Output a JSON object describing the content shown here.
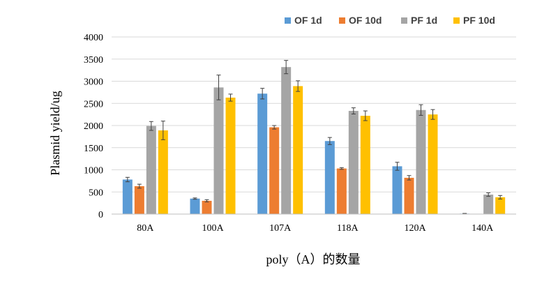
{
  "chart_data": {
    "type": "bar",
    "xlabel": "poly（A）的数量",
    "ylabel": "Plasmid yield/ug",
    "categories": [
      "80A",
      "100A",
      "107A",
      "118A",
      "120A",
      "140A"
    ],
    "ylim": [
      0,
      4000
    ],
    "yticks": [
      0,
      500,
      1000,
      1500,
      2000,
      2500,
      3000,
      3500,
      4000
    ],
    "ytick_labels": [
      "0",
      "500",
      "1000",
      "1500",
      "2000",
      "2500",
      "3000",
      "3500",
      "4000"
    ],
    "grid": true,
    "legend_position": "top-right",
    "series": [
      {
        "name": "OF 1d",
        "color": "#5B9BD5",
        "values": [
          780,
          350,
          2720,
          1650,
          1080,
          10
        ],
        "errors": [
          50,
          15,
          120,
          80,
          90,
          5
        ]
      },
      {
        "name": "OF 10d",
        "color": "#ED7D31",
        "values": [
          630,
          300,
          1960,
          1030,
          820,
          0
        ],
        "errors": [
          45,
          25,
          40,
          20,
          50,
          0
        ]
      },
      {
        "name": "PF 1d",
        "color": "#A5A5A5",
        "values": [
          1990,
          2860,
          3320,
          2330,
          2350,
          440
        ],
        "errors": [
          100,
          280,
          150,
          70,
          120,
          40
        ]
      },
      {
        "name": "PF 10d",
        "color": "#FFC000",
        "values": [
          1890,
          2630,
          2890,
          2220,
          2250,
          380
        ],
        "errors": [
          210,
          80,
          120,
          110,
          110,
          40
        ]
      }
    ]
  }
}
